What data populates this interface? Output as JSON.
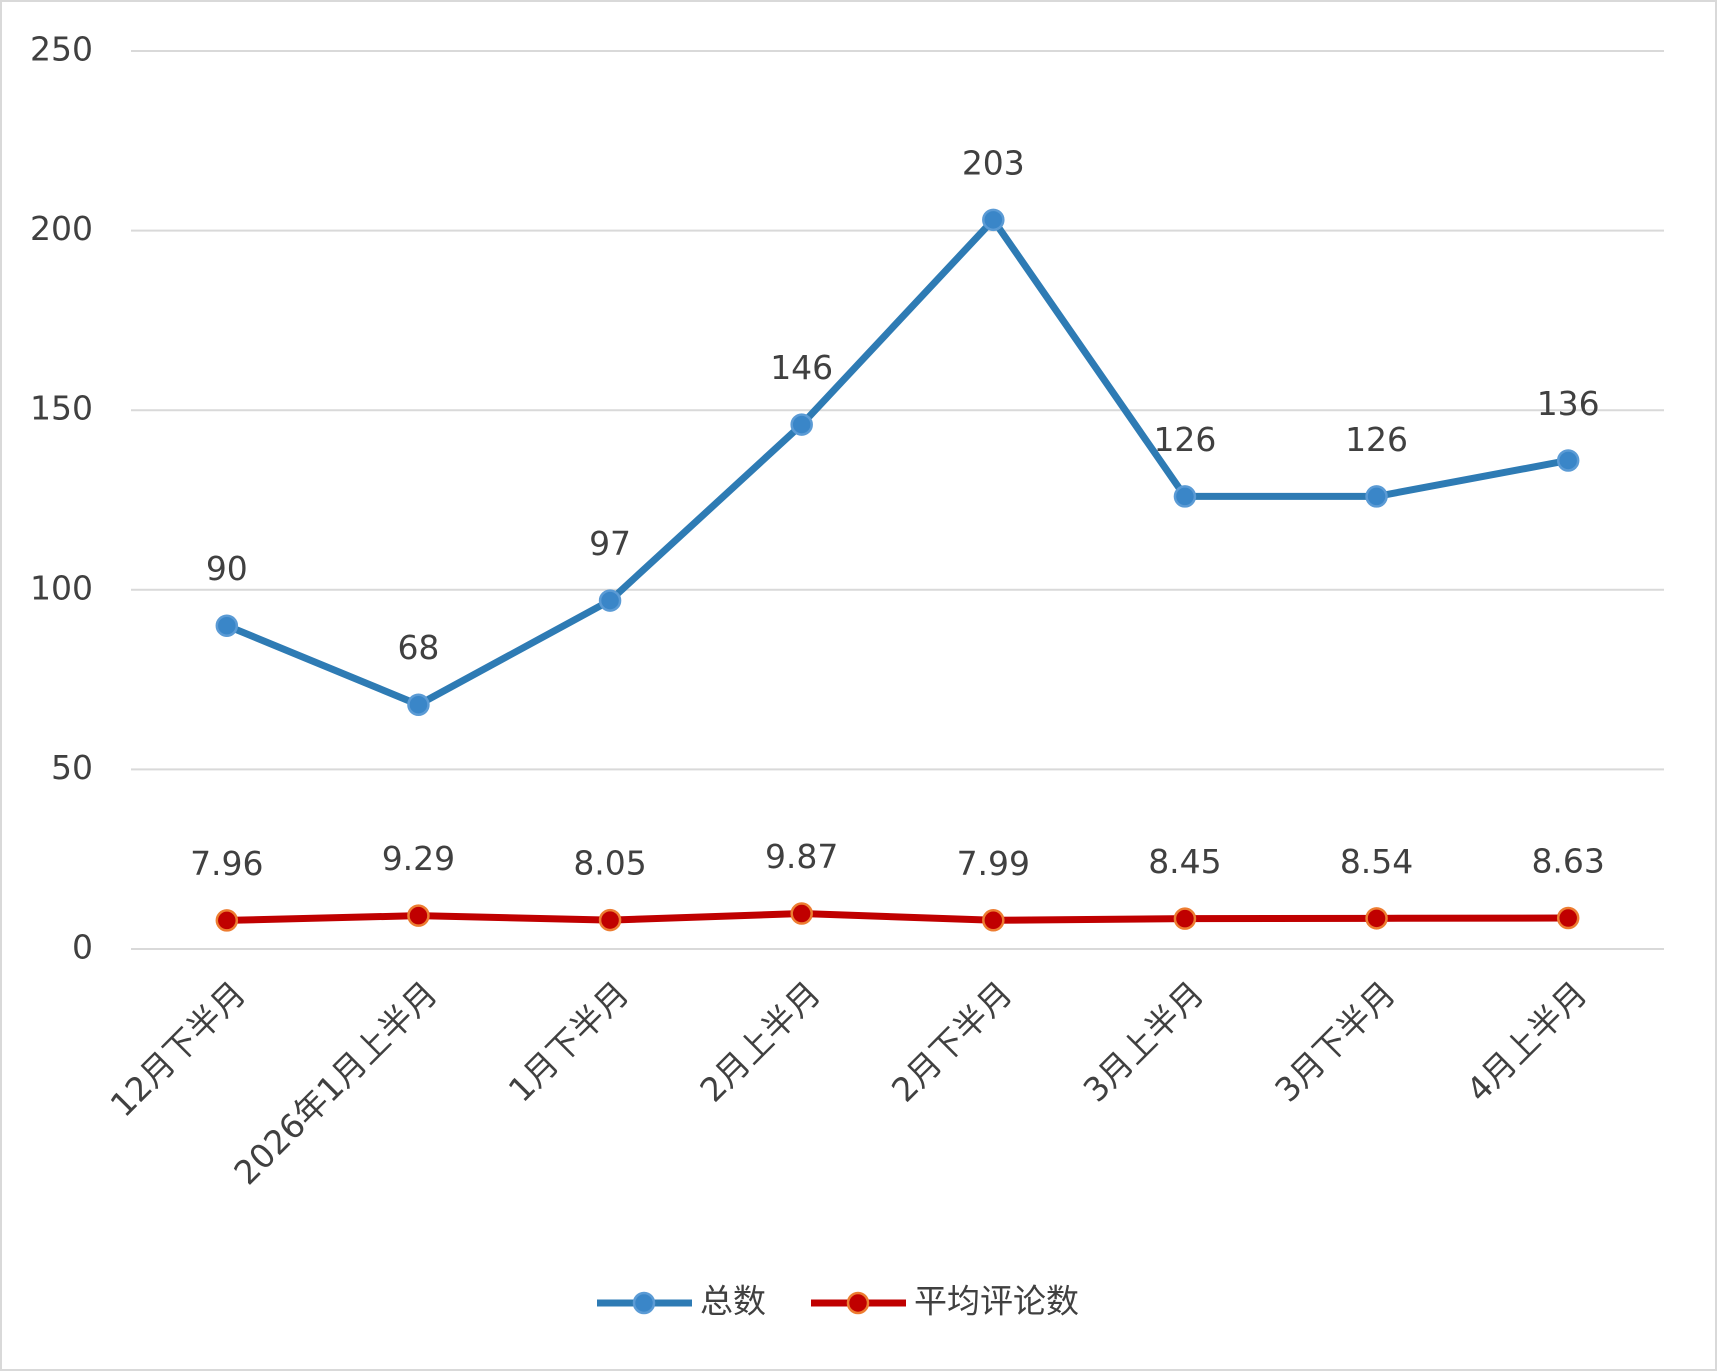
{
  "chart_data": {
    "type": "line",
    "categories": [
      "12月下半月",
      "2026年1月上半月",
      "1月下半月",
      "2月上半月",
      "2月下半月",
      "3月上半月",
      "3月下半月",
      "4月上半月"
    ],
    "series": [
      {
        "name": "总数",
        "color": "#2e7bb4",
        "values": [
          90,
          68,
          97,
          146,
          203,
          126,
          126,
          136
        ]
      },
      {
        "name": "平均评论数",
        "color": "#c00000",
        "values": [
          7.96,
          9.29,
          8.05,
          9.87,
          7.99,
          8.45,
          8.54,
          8.63
        ]
      }
    ],
    "ylim": [
      0,
      250
    ],
    "yticks": [
      0,
      50,
      100,
      150,
      200,
      250
    ],
    "grid": true,
    "legend": "bottom"
  }
}
